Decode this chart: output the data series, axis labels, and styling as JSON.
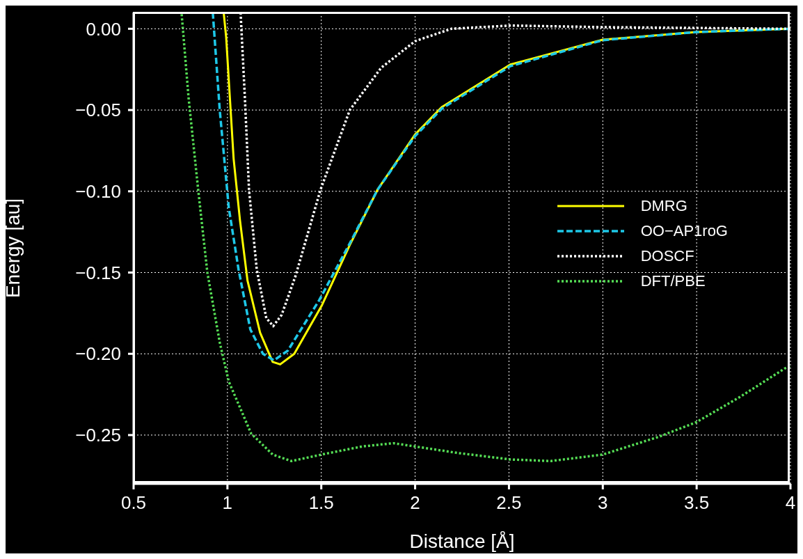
{
  "chart_data": {
    "type": "line",
    "xlabel": "Distance [Å]",
    "ylabel": "Energy [au]",
    "xlim": [
      0.5,
      4
    ],
    "xticks": [
      0.5,
      1,
      1.5,
      2,
      2.5,
      3,
      3.5,
      4
    ],
    "ylim": [
      -0.28,
      0.01
    ],
    "yticks": [
      {
        "value": 0,
        "label": "0.00"
      },
      {
        "value": -0.05,
        "label": "−0.05"
      },
      {
        "value": -0.1,
        "label": "−0.10"
      },
      {
        "value": -0.15,
        "label": "−0.15"
      },
      {
        "value": -0.2,
        "label": "−0.20"
      },
      {
        "value": -0.25,
        "label": "−0.25"
      }
    ],
    "grid": true,
    "legend": "right",
    "marker": "none",
    "series": [
      {
        "name": "DMRG",
        "color": "#ffff00",
        "line_style": "solid",
        "x": [
          0.98,
          0.993,
          1.033,
          1.067,
          1.107,
          1.174,
          1.241,
          1.281,
          1.356,
          1.504,
          1.652,
          1.8,
          2.0,
          2.144,
          2.507,
          3.0,
          3.5,
          4.0
        ],
        "values": [
          0.01,
          -0.005,
          -0.08,
          -0.118,
          -0.155,
          -0.187,
          -0.205,
          -0.2065,
          -0.2,
          -0.17,
          -0.133,
          -0.099,
          -0.065,
          -0.048,
          -0.022,
          -0.0067,
          -0.002,
          0
        ]
      },
      {
        "name": "OO−AP1roG",
        "color": "#1ec8e8",
        "line_style": "dashed",
        "x": [
          0.922,
          0.959,
          1.007,
          1.059,
          1.122,
          1.189,
          1.248,
          1.322,
          1.489,
          1.652,
          1.8,
          2.0,
          2.144,
          2.507,
          3.0,
          3.5,
          4.0
        ],
        "values": [
          0.01,
          -0.05,
          -0.11,
          -0.148,
          -0.185,
          -0.2,
          -0.204,
          -0.198,
          -0.167,
          -0.132,
          -0.099,
          -0.066,
          -0.049,
          -0.023,
          -0.007,
          -0.002,
          0
        ]
      },
      {
        "name": "DOSCF",
        "color": "#ffffff",
        "line_style": "dotted",
        "x": [
          1.07,
          1.093,
          1.115,
          1.156,
          1.207,
          1.244,
          1.289,
          1.363,
          1.496,
          1.652,
          1.819,
          2.0,
          2.193,
          2.507,
          3.0,
          4.0
        ],
        "values": [
          0.01,
          -0.0425,
          -0.099,
          -0.148,
          -0.178,
          -0.183,
          -0.176,
          -0.152,
          -0.099,
          -0.05,
          -0.024,
          -0.0076,
          0,
          0.002,
          0.001,
          0
        ]
      },
      {
        "name": "DFT/PBE",
        "color": "#55dd55",
        "line_style": "dotted",
        "x": [
          0.756,
          0.793,
          0.844,
          0.893,
          0.959,
          1.007,
          1.126,
          1.241,
          1.341,
          1.522,
          1.719,
          1.885,
          2.226,
          2.507,
          2.722,
          3.0,
          3.3,
          3.5,
          3.73,
          3.97,
          4.0
        ],
        "values": [
          0.009,
          -0.0425,
          -0.099,
          -0.15,
          -0.193,
          -0.217,
          -0.249,
          -0.262,
          -0.266,
          -0.2615,
          -0.257,
          -0.255,
          -0.261,
          -0.265,
          -0.266,
          -0.262,
          -0.251,
          -0.242,
          -0.2266,
          -0.209,
          -0.2075
        ]
      }
    ]
  }
}
